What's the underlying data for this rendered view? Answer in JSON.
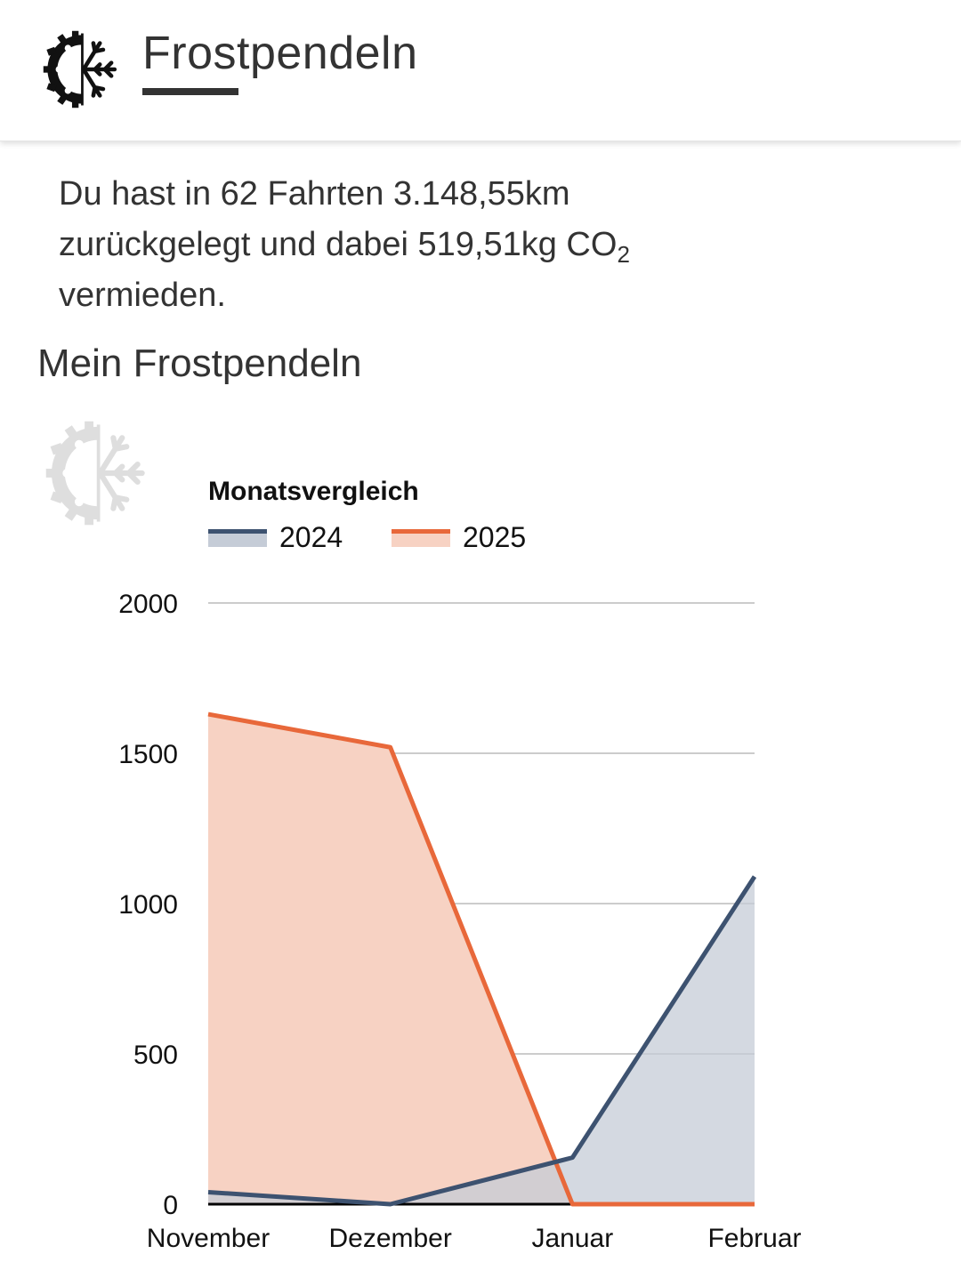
{
  "header": {
    "app_title": "Frostpendeln",
    "logo_icon": "gear-snowflake-logo-icon"
  },
  "summary": {
    "text_before_sub": "Du hast in 62 Fahrten 3.148,55km zurückgelegt und dabei 519,51kg CO",
    "subscript": "2",
    "text_after_sub": " vermieden.",
    "trips": 62,
    "distance": "3.148,55km",
    "co2_saved": "519,51kg"
  },
  "section": {
    "title": "Mein Frostpendeln",
    "watermark_icon": "gear-snowflake-watermark-icon"
  },
  "colors": {
    "series_2024_line": "#3d5270",
    "series_2024_fill": "#c5ccd7",
    "series_2025_line": "#e8683a",
    "series_2025_fill": "#f7d2c3",
    "grid": "#cccccc",
    "axis": "#000000"
  },
  "chart_data": {
    "type": "area",
    "title": "Monatsvergleich",
    "categories": [
      "November",
      "Dezember",
      "Januar",
      "Februar"
    ],
    "series": [
      {
        "name": "2024",
        "values": [
          40,
          0,
          155,
          1090
        ]
      },
      {
        "name": "2025",
        "values": [
          1630,
          1520,
          0,
          0
        ]
      }
    ],
    "yticks": [
      "0",
      "500",
      "1000",
      "1500",
      "2000"
    ],
    "ylim": [
      0,
      2000
    ],
    "xlabel": "",
    "ylabel": "",
    "grid": true,
    "legend_position": "top-left"
  }
}
